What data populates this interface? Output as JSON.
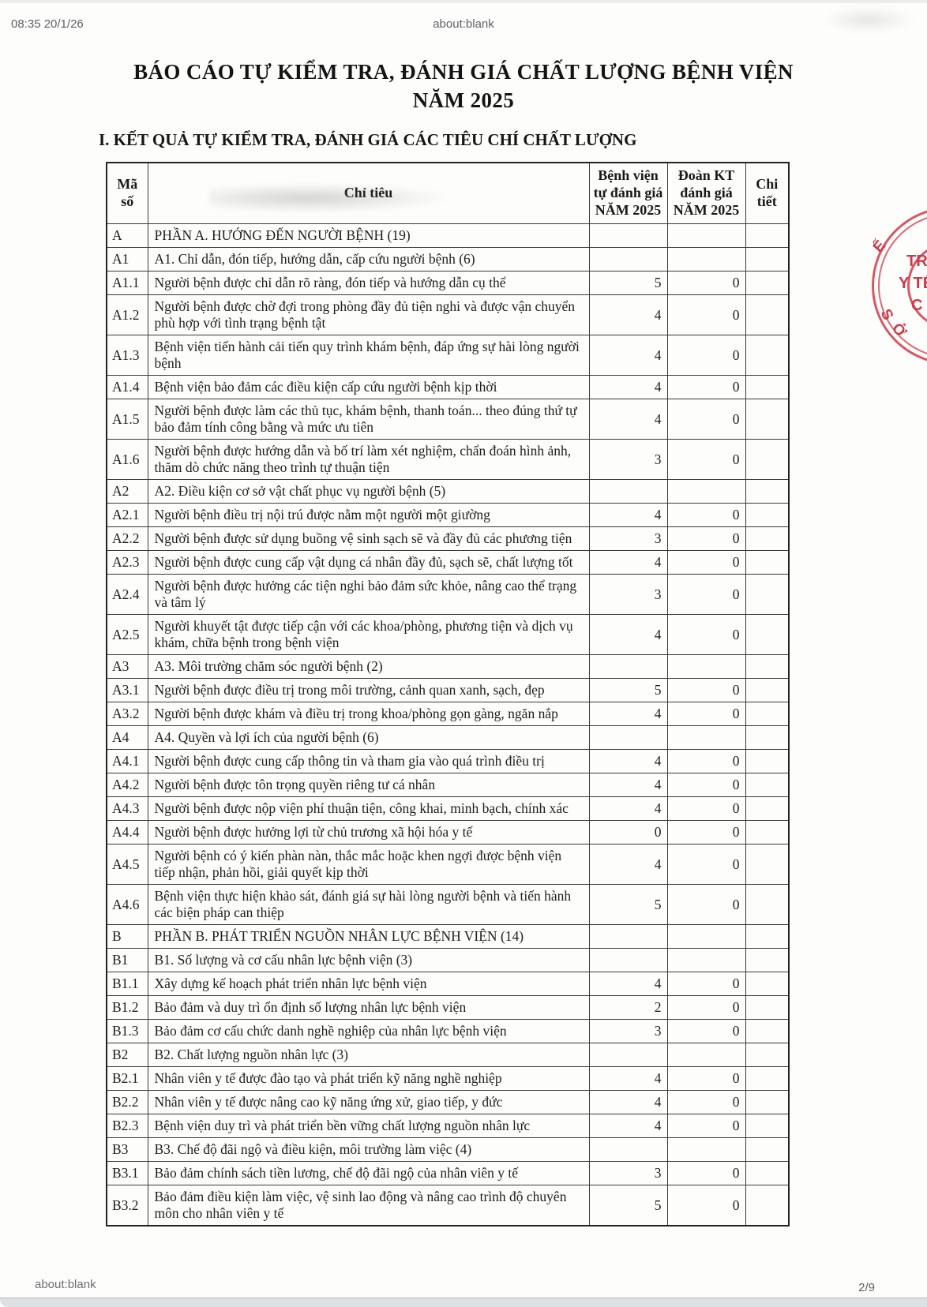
{
  "topbar": {
    "timestamp": "08:35 20/1/26",
    "url": "about:blank"
  },
  "report": {
    "title": "BÁO CÁO TỰ KIỂM TRA, ĐÁNH GIÁ CHẤT LƯỢNG BỆNH VIỆN\nNĂM 2025",
    "section_heading": "I. KẾT QUẢ TỰ KIỂM TRA, ĐÁNH GIÁ CÁC TIÊU CHÍ CHẤT LƯỢNG"
  },
  "table": {
    "headers": {
      "code": "Mã\nsố",
      "label": "Chỉ tiêu",
      "self": "Bệnh viện\ntự đánh giá\nNĂM 2025",
      "team": "Đoàn KT\nđánh giá\nNĂM 2025",
      "detail": "Chi\ntiết"
    },
    "rows": [
      {
        "code": "A",
        "label": "PHẦN A. HƯỚNG ĐẾN NGƯỜI BỆNH (19)",
        "self": "",
        "team": "",
        "section": true
      },
      {
        "code": "A1",
        "label": "A1. Chỉ dẫn, đón tiếp, hướng dẫn, cấp cứu người bệnh (6)",
        "self": "",
        "team": "",
        "section": true
      },
      {
        "code": "A1.1",
        "label": "Người bệnh được chỉ dẫn rõ ràng, đón tiếp và hướng dẫn cụ thể",
        "self": "5",
        "team": "0",
        "section": false
      },
      {
        "code": "A1.2",
        "label": "Người bệnh được chờ đợi trong phòng đầy đủ tiện nghi và được vận chuyển phù hợp với tình trạng bệnh tật",
        "self": "4",
        "team": "0",
        "section": false
      },
      {
        "code": "A1.3",
        "label": "Bệnh viện tiến hành cải tiến quy trình khám bệnh, đáp ứng sự hài lòng người bệnh",
        "self": "4",
        "team": "0",
        "section": false
      },
      {
        "code": "A1.4",
        "label": "Bệnh viện bảo đảm các điều kiện cấp cứu người bệnh kịp thời",
        "self": "4",
        "team": "0",
        "section": false
      },
      {
        "code": "A1.5",
        "label": "Người bệnh được làm các thủ tục, khám bệnh, thanh toán... theo đúng thứ tự bảo đảm tính công bằng và mức ưu tiên",
        "self": "4",
        "team": "0",
        "section": false
      },
      {
        "code": "A1.6",
        "label": "Người bệnh được hướng dẫn và bố trí làm xét nghiệm, chẩn đoán hình ảnh, thăm dò chức năng theo trình tự thuận tiện",
        "self": "3",
        "team": "0",
        "section": false
      },
      {
        "code": "A2",
        "label": "A2. Điều kiện cơ sở vật chất phục vụ người bệnh (5)",
        "self": "",
        "team": "",
        "section": true
      },
      {
        "code": "A2.1",
        "label": "Người bệnh điều trị nội trú được nằm một người một giường",
        "self": "4",
        "team": "0",
        "section": false
      },
      {
        "code": "A2.2",
        "label": "Người bệnh được sử dụng buồng vệ sinh sạch sẽ và đầy đủ các phương tiện",
        "self": "3",
        "team": "0",
        "section": false
      },
      {
        "code": "A2.3",
        "label": "Người bệnh được cung cấp vật dụng cá nhân đầy đủ, sạch sẽ, chất lượng tốt",
        "self": "4",
        "team": "0",
        "section": false
      },
      {
        "code": "A2.4",
        "label": "Người bệnh được hưởng các tiện nghi bảo đảm sức khỏe, nâng cao thể trạng và tâm lý",
        "self": "3",
        "team": "0",
        "section": false
      },
      {
        "code": "A2.5",
        "label": "Người khuyết tật được tiếp cận với các khoa/phòng, phương tiện và dịch vụ khám, chữa bệnh trong bệnh viện",
        "self": "4",
        "team": "0",
        "section": false
      },
      {
        "code": "A3",
        "label": "A3. Môi trường chăm sóc người bệnh (2)",
        "self": "",
        "team": "",
        "section": true
      },
      {
        "code": "A3.1",
        "label": "Người bệnh được điều trị trong môi trường, cảnh quan xanh, sạch, đẹp",
        "self": "5",
        "team": "0",
        "section": false
      },
      {
        "code": "A3.2",
        "label": "Người bệnh được khám và điều trị trong khoa/phòng gọn gàng, ngăn nắp",
        "self": "4",
        "team": "0",
        "section": false
      },
      {
        "code": "A4",
        "label": "A4. Quyền và lợi ích của người bệnh (6)",
        "self": "",
        "team": "",
        "section": true
      },
      {
        "code": "A4.1",
        "label": "Người bệnh được cung cấp thông tin và tham gia vào quá trình điều trị",
        "self": "4",
        "team": "0",
        "section": false
      },
      {
        "code": "A4.2",
        "label": "Người bệnh được tôn trọng quyền riêng tư cá nhân",
        "self": "4",
        "team": "0",
        "section": false
      },
      {
        "code": "A4.3",
        "label": "Người bệnh được nộp viện phí thuận tiện, công khai, minh bạch, chính xác",
        "self": "4",
        "team": "0",
        "section": false
      },
      {
        "code": "A4.4",
        "label": "Người bệnh được hưởng lợi từ chủ trương xã hội hóa y tế",
        "self": "0",
        "team": "0",
        "section": false
      },
      {
        "code": "A4.5",
        "label": "Người bệnh có ý kiến phàn nàn, thắc mắc hoặc khen ngợi được bệnh viện tiếp nhận, phản hồi, giải quyết kịp thời",
        "self": "4",
        "team": "0",
        "section": false
      },
      {
        "code": "A4.6",
        "label": "Bệnh viện thực hiện khảo sát, đánh giá sự hài lòng người bệnh và tiến hành các biện pháp can thiệp",
        "self": "5",
        "team": "0",
        "section": false
      },
      {
        "code": "B",
        "label": "PHẦN B. PHÁT TRIỂN NGUỒN NHÂN LỰC BỆNH VIỆN (14)",
        "self": "",
        "team": "",
        "section": true
      },
      {
        "code": "B1",
        "label": "B1. Số lượng và cơ cấu nhân lực bệnh viện (3)",
        "self": "",
        "team": "",
        "section": true
      },
      {
        "code": "B1.1",
        "label": "Xây dựng kế hoạch phát triển nhân lực bệnh viện",
        "self": "4",
        "team": "0",
        "section": false
      },
      {
        "code": "B1.2",
        "label": "Bảo đảm và duy trì ổn định số lượng nhân lực bệnh viện",
        "self": "2",
        "team": "0",
        "section": false
      },
      {
        "code": "B1.3",
        "label": "Bảo đảm cơ cấu chức danh nghề nghiệp của nhân lực bệnh viện",
        "self": "3",
        "team": "0",
        "section": false
      },
      {
        "code": "B2",
        "label": "B2. Chất lượng nguồn nhân lực (3)",
        "self": "",
        "team": "",
        "section": true
      },
      {
        "code": "B2.1",
        "label": "Nhân viên y tế được đào tạo và phát triển kỹ năng nghề nghiệp",
        "self": "4",
        "team": "0",
        "section": false
      },
      {
        "code": "B2.2",
        "label": "Nhân viên y tế được nâng cao kỹ năng ứng xử, giao tiếp, y đức",
        "self": "4",
        "team": "0",
        "section": false
      },
      {
        "code": "B2.3",
        "label": "Bệnh viện duy trì và phát triển bền vững chất lượng nguồn nhân lực",
        "self": "4",
        "team": "0",
        "section": false
      },
      {
        "code": "B3",
        "label": "B3. Chế độ đãi ngộ và điều kiện, môi trường làm việc (4)",
        "self": "",
        "team": "",
        "section": true
      },
      {
        "code": "B3.1",
        "label": "Bảo đảm chính sách tiền lương, chế độ đãi ngộ của nhân viên y tế",
        "self": "3",
        "team": "0",
        "section": false
      },
      {
        "code": "B3.2",
        "label": "Bảo đảm điều kiện làm việc, vệ sinh lao động và nâng cao trình độ chuyên môn cho nhân viên y tế",
        "self": "5",
        "team": "0",
        "section": false
      }
    ]
  },
  "stamp": {
    "color": "#d03948",
    "rim_top": "Ế",
    "rim_bottom_1": "S",
    "rim_bottom_2": "Ở",
    "line1": "TR",
    "line2": "Y TẾ",
    "line3": "C"
  },
  "footer": {
    "url": "about:blank",
    "page_indicator": "2/9"
  }
}
